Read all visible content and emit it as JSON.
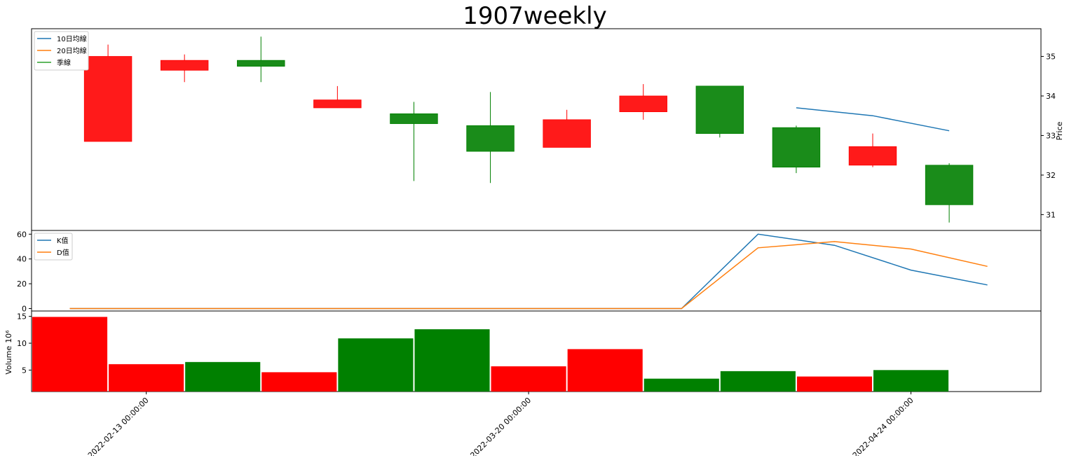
{
  "chart_data": {
    "type": "candlestick",
    "title": "1907weekly",
    "colors": {
      "up": "#ff0000",
      "down": "#008000",
      "ma10": "#1f77b4",
      "ma20": "#ff7f0e",
      "season": "#2ca02c",
      "k": "#1f77b4",
      "d": "#ff7f0e"
    },
    "date_ticks": [
      {
        "index": 0.5,
        "label": "2022-02-13 00:00:00"
      },
      {
        "index": 5.5,
        "label": "2022-03-20 00:00:00"
      },
      {
        "index": 10.5,
        "label": "2022-04-24 00:00:00"
      }
    ],
    "price": {
      "ylabel": "Price",
      "ylim": [
        30.6,
        35.7
      ],
      "ticks": [
        31,
        32,
        33,
        34,
        35
      ],
      "legend": [
        "10日均線",
        "20日均線",
        "季線"
      ],
      "legend_position": "top-left",
      "candles": [
        {
          "open": 32.85,
          "high": 35.3,
          "low": 32.85,
          "close": 35.0
        },
        {
          "open": 34.65,
          "high": 35.05,
          "low": 34.35,
          "close": 34.9
        },
        {
          "open": 34.9,
          "high": 35.5,
          "low": 34.35,
          "close": 34.75
        },
        {
          "open": 33.7,
          "high": 34.25,
          "low": 33.7,
          "close": 33.9
        },
        {
          "open": 33.55,
          "high": 33.85,
          "low": 31.85,
          "close": 33.3
        },
        {
          "open": 33.25,
          "high": 34.1,
          "low": 31.8,
          "close": 32.6
        },
        {
          "open": 32.7,
          "high": 33.65,
          "low": 32.7,
          "close": 33.4
        },
        {
          "open": 33.6,
          "high": 34.3,
          "low": 33.4,
          "close": 34.0
        },
        {
          "open": 34.25,
          "high": 34.25,
          "low": 32.95,
          "close": 33.05
        },
        {
          "open": 33.2,
          "high": 33.25,
          "low": 32.05,
          "close": 32.2
        },
        {
          "open": 32.25,
          "high": 33.05,
          "low": 32.2,
          "close": 32.72
        },
        {
          "open": 32.25,
          "high": 32.3,
          "low": 30.8,
          "close": 31.25
        }
      ],
      "ma10": [
        null,
        null,
        null,
        null,
        null,
        null,
        null,
        null,
        null,
        33.7,
        33.5,
        33.12
      ],
      "ma20": [],
      "season": []
    },
    "kd": {
      "ylim": [
        -2,
        63
      ],
      "ticks": [
        0,
        20,
        40,
        60
      ],
      "legend": [
        "K值",
        "D值"
      ],
      "legend_position": "top-left",
      "x": [
        -0.5,
        0.5,
        1.5,
        2.5,
        3.5,
        4.5,
        5.5,
        6.5,
        7.5,
        8.5,
        9.5,
        10.5,
        11.5
      ],
      "k": [
        0,
        0,
        0,
        0,
        0,
        0,
        0,
        0,
        0,
        60,
        51,
        31,
        19
      ],
      "d": [
        0,
        0,
        0,
        0,
        0,
        0,
        0,
        0,
        0,
        49,
        54,
        48,
        34
      ]
    },
    "volume": {
      "ylabel": "Volume",
      "unit": "10⁶",
      "ylim": [
        1,
        16
      ],
      "ticks": [
        5,
        10,
        15
      ],
      "x": [
        -0.5,
        0.5,
        1.5,
        2.5,
        3.5,
        4.5,
        5.5,
        6.5,
        7.5,
        8.5,
        9.5,
        10.5
      ],
      "values": [
        14.9,
        6.1,
        6.5,
        4.6,
        10.9,
        12.6,
        5.7,
        8.9,
        3.4,
        4.8,
        3.8,
        5.0
      ],
      "colors": [
        "up",
        "up",
        "down",
        "up",
        "down",
        "down",
        "up",
        "up",
        "down",
        "down",
        "up",
        "down"
      ]
    }
  }
}
